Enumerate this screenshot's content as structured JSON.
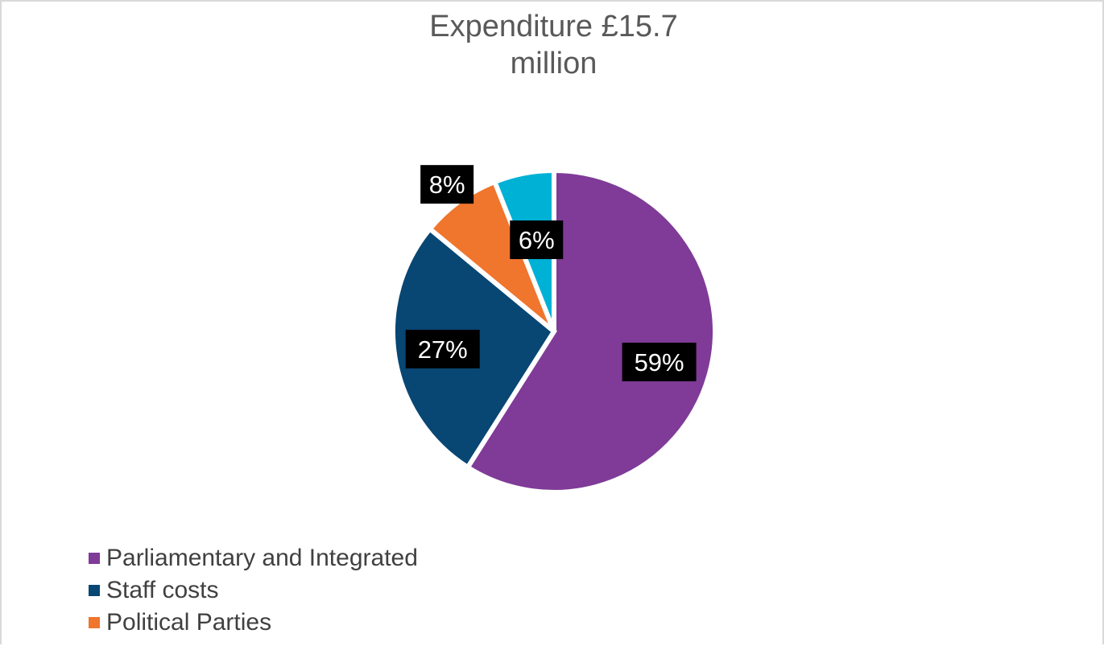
{
  "chart_data": {
    "type": "pie",
    "title_lines": [
      "Expenditure £15.7",
      "million"
    ],
    "categories": [
      "Parliamentary and Integrated",
      "Staff costs",
      "Political Parties",
      ""
    ],
    "values": [
      59,
      27,
      8,
      6
    ],
    "data_labels": [
      "59%",
      "27%",
      "8%",
      "6%"
    ],
    "colors": [
      "#7f3b97",
      "#084673",
      "#f0752d",
      "#00b1d6"
    ],
    "legend_position": "bottom-left",
    "legend_visible_count": 3
  }
}
